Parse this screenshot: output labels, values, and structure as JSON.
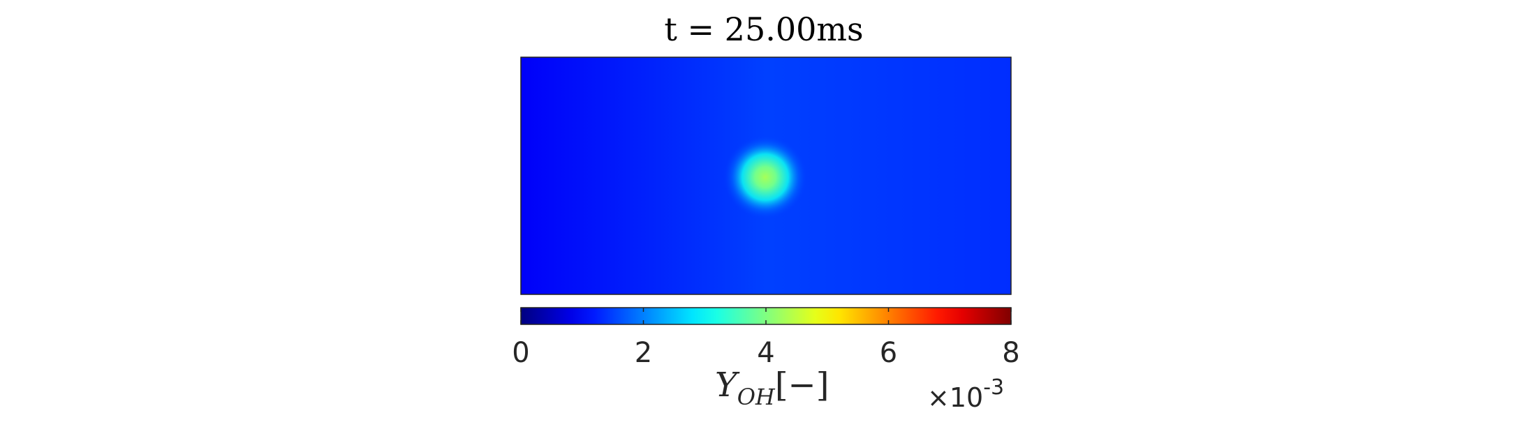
{
  "chart_data": {
    "type": "heatmap",
    "title": "t = 25.00ms",
    "colorbar": {
      "colormap": "jet",
      "orientation": "horizontal",
      "range": [
        0,
        8
      ],
      "ticks": [
        0,
        2,
        4,
        6,
        8
      ],
      "tick_labels": [
        "0",
        "2",
        "4",
        "6",
        "8"
      ],
      "label_main": "Y",
      "label_subscript": "OH",
      "label_suffix": "[−]",
      "multiplier_prefix": "×10",
      "multiplier_exponent": "-3"
    },
    "field": {
      "background_values": {
        "left_edge": 0.95,
        "center": 1.5,
        "right_edge": 1.35
      },
      "hotspot": {
        "x_fraction": 0.5,
        "y_fraction": 0.5,
        "peak_value": 4.3
      },
      "axes_visible": false
    }
  }
}
